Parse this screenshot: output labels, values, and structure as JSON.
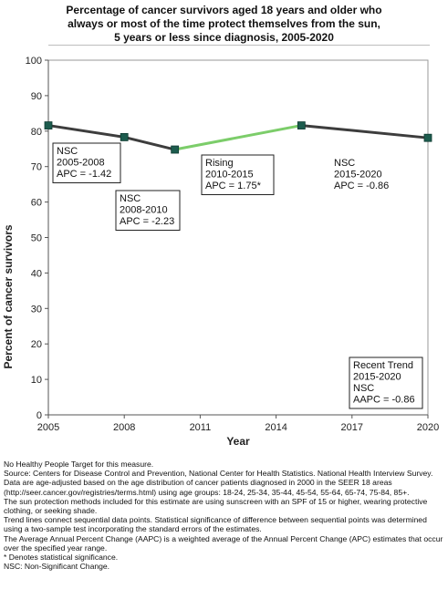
{
  "chart_data": {
    "type": "line",
    "title": [
      "Percentage of cancer survivors aged 18 years and older who",
      "always or most of the time protect themselves from the sun,",
      "5 years or less since diagnosis,  2005-2020"
    ],
    "xlabel": "Year",
    "ylabel": "Percent of cancer survivors",
    "xlim": [
      2005,
      2020
    ],
    "ylim": [
      0,
      100
    ],
    "x_ticks": [
      "2005",
      "2008",
      "2011",
      "2014",
      "2017",
      "2020"
    ],
    "y_ticks": [
      "0",
      "10",
      "20",
      "30",
      "40",
      "50",
      "60",
      "70",
      "80",
      "90",
      "100"
    ],
    "grid": false,
    "points": [
      {
        "x": 2005,
        "y": 81.6
      },
      {
        "x": 2008,
        "y": 78.3
      },
      {
        "x": 2010,
        "y": 74.8
      },
      {
        "x": 2015,
        "y": 81.6
      },
      {
        "x": 2020,
        "y": 78.1
      }
    ],
    "segments": [
      {
        "from": 2005,
        "to": 2008,
        "trend": "NSC",
        "color": "#3d3d3d"
      },
      {
        "from": 2008,
        "to": 2010,
        "trend": "NSC",
        "color": "#3d3d3d"
      },
      {
        "from": 2010,
        "to": 2015,
        "trend": "Rising",
        "color": "#7ccd6a"
      },
      {
        "from": 2015,
        "to": 2020,
        "trend": "NSC",
        "color": "#3d3d3d"
      }
    ],
    "marker_color": "#1d5c4e",
    "annotations": [
      {
        "lines": [
          "NSC",
          "2005-2008",
          "APC = -1.42"
        ],
        "boxed": true
      },
      {
        "lines": [
          "NSC",
          "2008-2010",
          "APC = -2.23"
        ],
        "boxed": true
      },
      {
        "lines": [
          "Rising",
          "2010-2015",
          "APC =  1.75*"
        ],
        "boxed": true
      },
      {
        "lines": [
          "NSC",
          "2015-2020",
          "APC = -0.86"
        ],
        "boxed": false
      },
      {
        "lines": [
          "Recent Trend",
          "2015-2020",
          "NSC",
          "AAPC = -0.86"
        ],
        "boxed": true
      }
    ]
  },
  "notes": [
    "No Healthy People Target for this measure.",
    "Source: Centers for Disease Control and Prevention, National Center for Health Statistics. National Health Interview Survey.",
    "Data are age-adjusted based on the age distribution of cancer patients diagnosed in 2000 in the SEER 18 areas (http://seer.cancer.gov/registries/terms.html) using age groups: 18-24, 25-34, 35-44, 45-54, 55-64, 65-74, 75-84, 85+.",
    "The sun protection methods included for this estimate are using sunscreen with an SPF of 15 or higher, wearing protective clothing, or seeking shade.",
    "Trend lines connect sequential data points. Statistical significance of difference between sequential points was determined using a two-sample test incorporating the standard errors of the estimates.",
    "The Average Annual Percent Change (AAPC) is a weighted average of the Annual Percent Change (APC) estimates that occur over the specified year range.",
    "* Denotes statistical significance.",
    "NSC: Non-Significant Change."
  ]
}
